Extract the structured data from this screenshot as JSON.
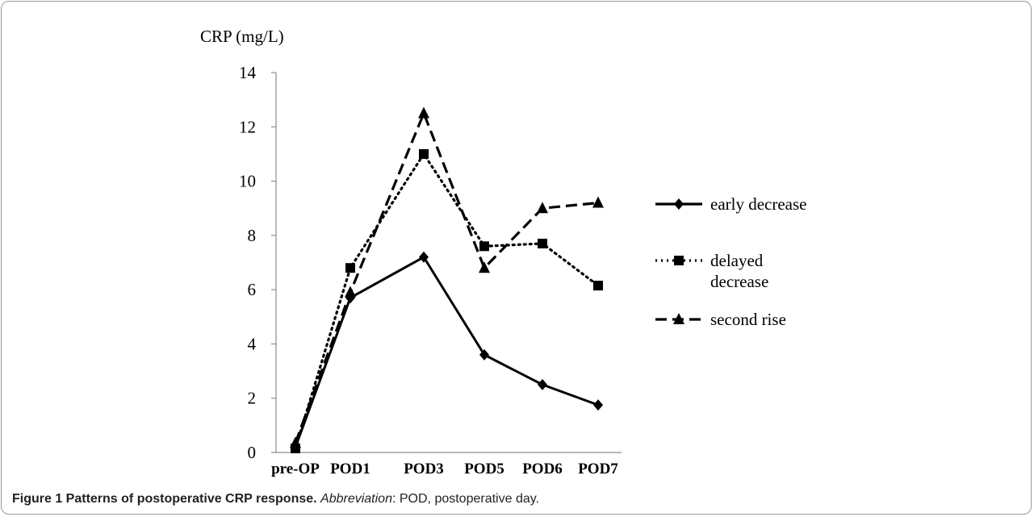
{
  "chart_data": {
    "type": "line",
    "categories": [
      "pre-OP",
      "POD1",
      "POD3",
      "POD5",
      "POD6",
      "POD7"
    ],
    "series": [
      {
        "name": "early decrease",
        "values": [
          0.2,
          5.7,
          7.2,
          3.6,
          2.5,
          1.75
        ],
        "marker": "diamond",
        "dash": "solid"
      },
      {
        "name": "delayed decrease",
        "values": [
          0.15,
          6.8,
          11.0,
          7.6,
          7.7,
          6.15
        ],
        "marker": "square",
        "dash": "dotted"
      },
      {
        "name": "second rise",
        "values": [
          0.35,
          5.9,
          12.5,
          6.8,
          9.0,
          9.2
        ],
        "marker": "triangle",
        "dash": "dashed"
      }
    ],
    "ylabel": "CRP (mg/L)",
    "ylim": [
      0,
      14
    ],
    "yticks": [
      0,
      2,
      4,
      6,
      8,
      10,
      12,
      14
    ],
    "grid": false,
    "legend_position": "right",
    "line_color": "#000000"
  },
  "caption": {
    "title": "Figure 1 Patterns of postoperative CRP response.",
    "abbr_label": "Abbreviation",
    "abbr_text": ": POD, postoperative day."
  }
}
